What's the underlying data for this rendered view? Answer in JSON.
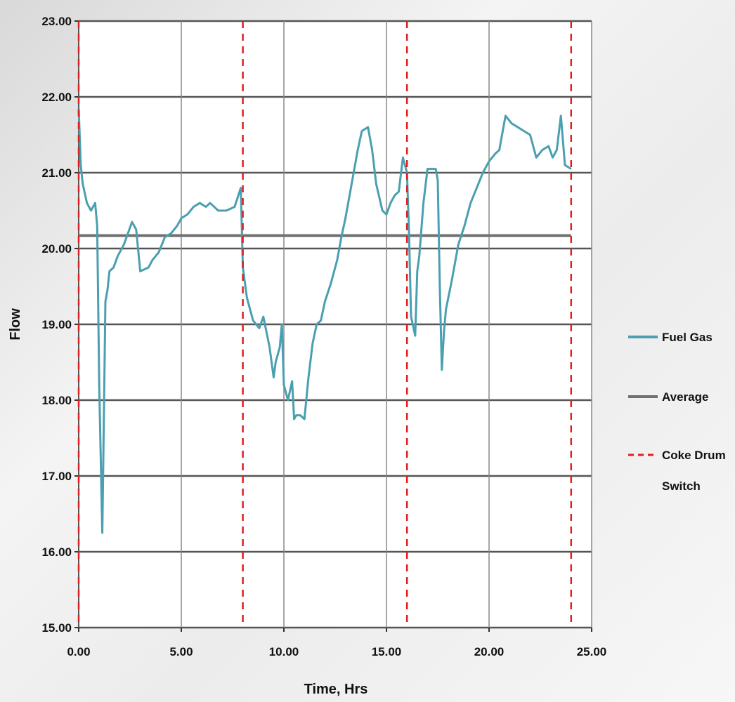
{
  "chart_data": {
    "type": "line",
    "title": "",
    "xlabel": "Time, Hrs",
    "ylabel": "Flow",
    "xlim": [
      0,
      25
    ],
    "xticks": [
      0,
      5,
      10,
      15,
      20,
      25
    ],
    "xtick_labels": [
      "0.00",
      "5.00",
      "10.00",
      "15.00",
      "20.00",
      "25.00"
    ],
    "ylim": [
      15,
      23
    ],
    "yticks": [
      15,
      16,
      17,
      18,
      19,
      20,
      21,
      22,
      23
    ],
    "ytick_labels": [
      "15.00",
      "16.00",
      "17.00",
      "18.00",
      "19.00",
      "20.00",
      "21.00",
      "22.00",
      "23.00"
    ],
    "grid": true,
    "legend_position": "right",
    "legend": [
      {
        "label": "Fuel Gas",
        "style": "solid",
        "color": "#4a9fb0"
      },
      {
        "label": "Average",
        "style": "solid",
        "color": "#707070"
      },
      {
        "label": "Coke Drum Switch",
        "style": "dashed",
        "color": "#e02020"
      }
    ],
    "series": [
      {
        "name": "Fuel Gas",
        "color": "#4a9fb0",
        "x": [
          0,
          0.1,
          0.2,
          0.4,
          0.6,
          0.8,
          0.9,
          1.0,
          1.15,
          1.2,
          1.3,
          1.4,
          1.5,
          1.7,
          1.9,
          2.2,
          2.4,
          2.6,
          2.8,
          3.0,
          3.4,
          3.6,
          3.9,
          4.2,
          4.5,
          4.8,
          5.0,
          5.3,
          5.6,
          5.9,
          6.2,
          6.4,
          6.8,
          7.2,
          7.6,
          7.9,
          8.0,
          8.2,
          8.5,
          8.8,
          9.0,
          9.3,
          9.5,
          9.6,
          9.8,
          9.9,
          10.0,
          10.2,
          10.4,
          10.5,
          10.6,
          10.8,
          11.0,
          11.2,
          11.4,
          11.6,
          11.8,
          12.0,
          12.3,
          12.6,
          12.8,
          13.0,
          13.3,
          13.6,
          13.8,
          14.1,
          14.3,
          14.5,
          14.8,
          15.0,
          15.2,
          15.4,
          15.6,
          15.8,
          16.0,
          16.1,
          16.2,
          16.4,
          16.5,
          16.6,
          16.8,
          17.0,
          17.2,
          17.4,
          17.5,
          17.6,
          17.7,
          17.8,
          17.9,
          18.2,
          18.5,
          18.8,
          19.1,
          19.4,
          19.7,
          20.0,
          20.3,
          20.5,
          20.8,
          21.1,
          21.4,
          21.7,
          22.0,
          22.3,
          22.6,
          22.9,
          23.1,
          23.3,
          23.5,
          23.7,
          24.0
        ],
        "y": [
          21.85,
          21.1,
          20.85,
          20.6,
          20.5,
          20.6,
          20.3,
          18.2,
          16.25,
          17.2,
          19.3,
          19.45,
          19.7,
          19.75,
          19.9,
          20.05,
          20.2,
          20.35,
          20.25,
          19.7,
          19.75,
          19.85,
          19.95,
          20.15,
          20.2,
          20.3,
          20.4,
          20.45,
          20.55,
          20.6,
          20.55,
          20.6,
          20.5,
          20.5,
          20.55,
          20.8,
          19.75,
          19.35,
          19.05,
          18.95,
          19.1,
          18.7,
          18.3,
          18.5,
          18.7,
          19.0,
          18.2,
          18.0,
          18.25,
          17.75,
          17.8,
          17.8,
          17.75,
          18.3,
          18.75,
          19.0,
          19.05,
          19.3,
          19.55,
          19.85,
          20.15,
          20.4,
          20.85,
          21.3,
          21.55,
          21.6,
          21.3,
          20.85,
          20.5,
          20.45,
          20.6,
          20.7,
          20.75,
          21.2,
          21.0,
          20.2,
          19.1,
          18.85,
          19.7,
          19.9,
          20.6,
          21.05,
          21.05,
          21.05,
          20.9,
          19.5,
          18.4,
          18.9,
          19.2,
          19.6,
          20.05,
          20.3,
          20.6,
          20.8,
          21.0,
          21.15,
          21.25,
          21.3,
          21.75,
          21.65,
          21.6,
          21.55,
          21.5,
          21.2,
          21.3,
          21.35,
          21.2,
          21.3,
          21.75,
          21.1,
          21.05
        ]
      },
      {
        "name": "Average",
        "color": "#707070",
        "x": [
          0,
          24.0
        ],
        "y": [
          20.17,
          20.17
        ]
      }
    ],
    "vlines": {
      "name": "Coke Drum Switch",
      "color": "#e02020",
      "x": [
        0,
        8.0,
        16.0,
        24.0
      ]
    }
  }
}
